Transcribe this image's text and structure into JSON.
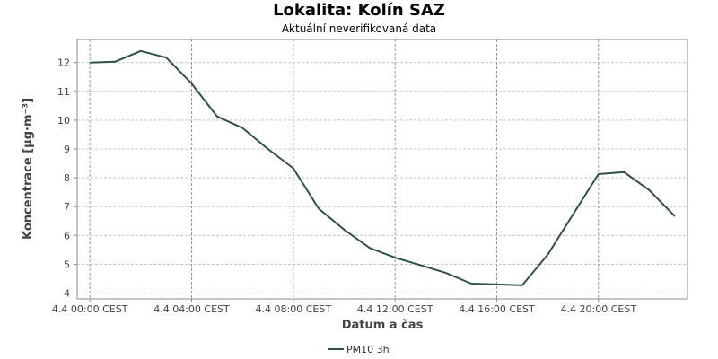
{
  "chart_data": {
    "type": "line",
    "title": "Lokalita: Kolín SAZ",
    "subtitle": "Aktuální neverifikovaná data",
    "xlabel": "Datum a čas",
    "ylabel": "Koncentrace [µg·m⁻³]",
    "x_tick_labels": [
      "4.4 00:00 CEST",
      "4.4 04:00 CEST",
      "4.4 08:00 CEST",
      "4.4 12:00 CEST",
      "4.4 16:00 CEST",
      "4.4 20:00 CEST"
    ],
    "x_tick_hours": [
      0,
      4,
      8,
      12,
      16,
      20
    ],
    "xlim": [
      -0.5,
      23.5
    ],
    "y_ticks": [
      4,
      5,
      6,
      7,
      8,
      9,
      10,
      11,
      12
    ],
    "ylim": [
      3.8,
      12.8
    ],
    "grid": true,
    "legend_position": "bottom",
    "series": [
      {
        "name": "PM10 3h",
        "color": "#2f4f4f",
        "x": [
          0,
          1,
          2,
          3,
          4,
          5,
          6,
          7,
          8,
          9,
          10,
          11,
          12,
          13,
          14,
          15,
          16,
          17,
          18,
          19,
          20,
          21,
          22,
          23
        ],
        "values": [
          12.0,
          12.03,
          12.4,
          12.17,
          11.27,
          10.13,
          9.73,
          9.0,
          8.33,
          6.93,
          6.2,
          5.57,
          5.23,
          4.97,
          4.7,
          4.33,
          4.3,
          4.27,
          5.33,
          6.73,
          8.13,
          8.2,
          7.57,
          6.67
        ]
      }
    ]
  }
}
